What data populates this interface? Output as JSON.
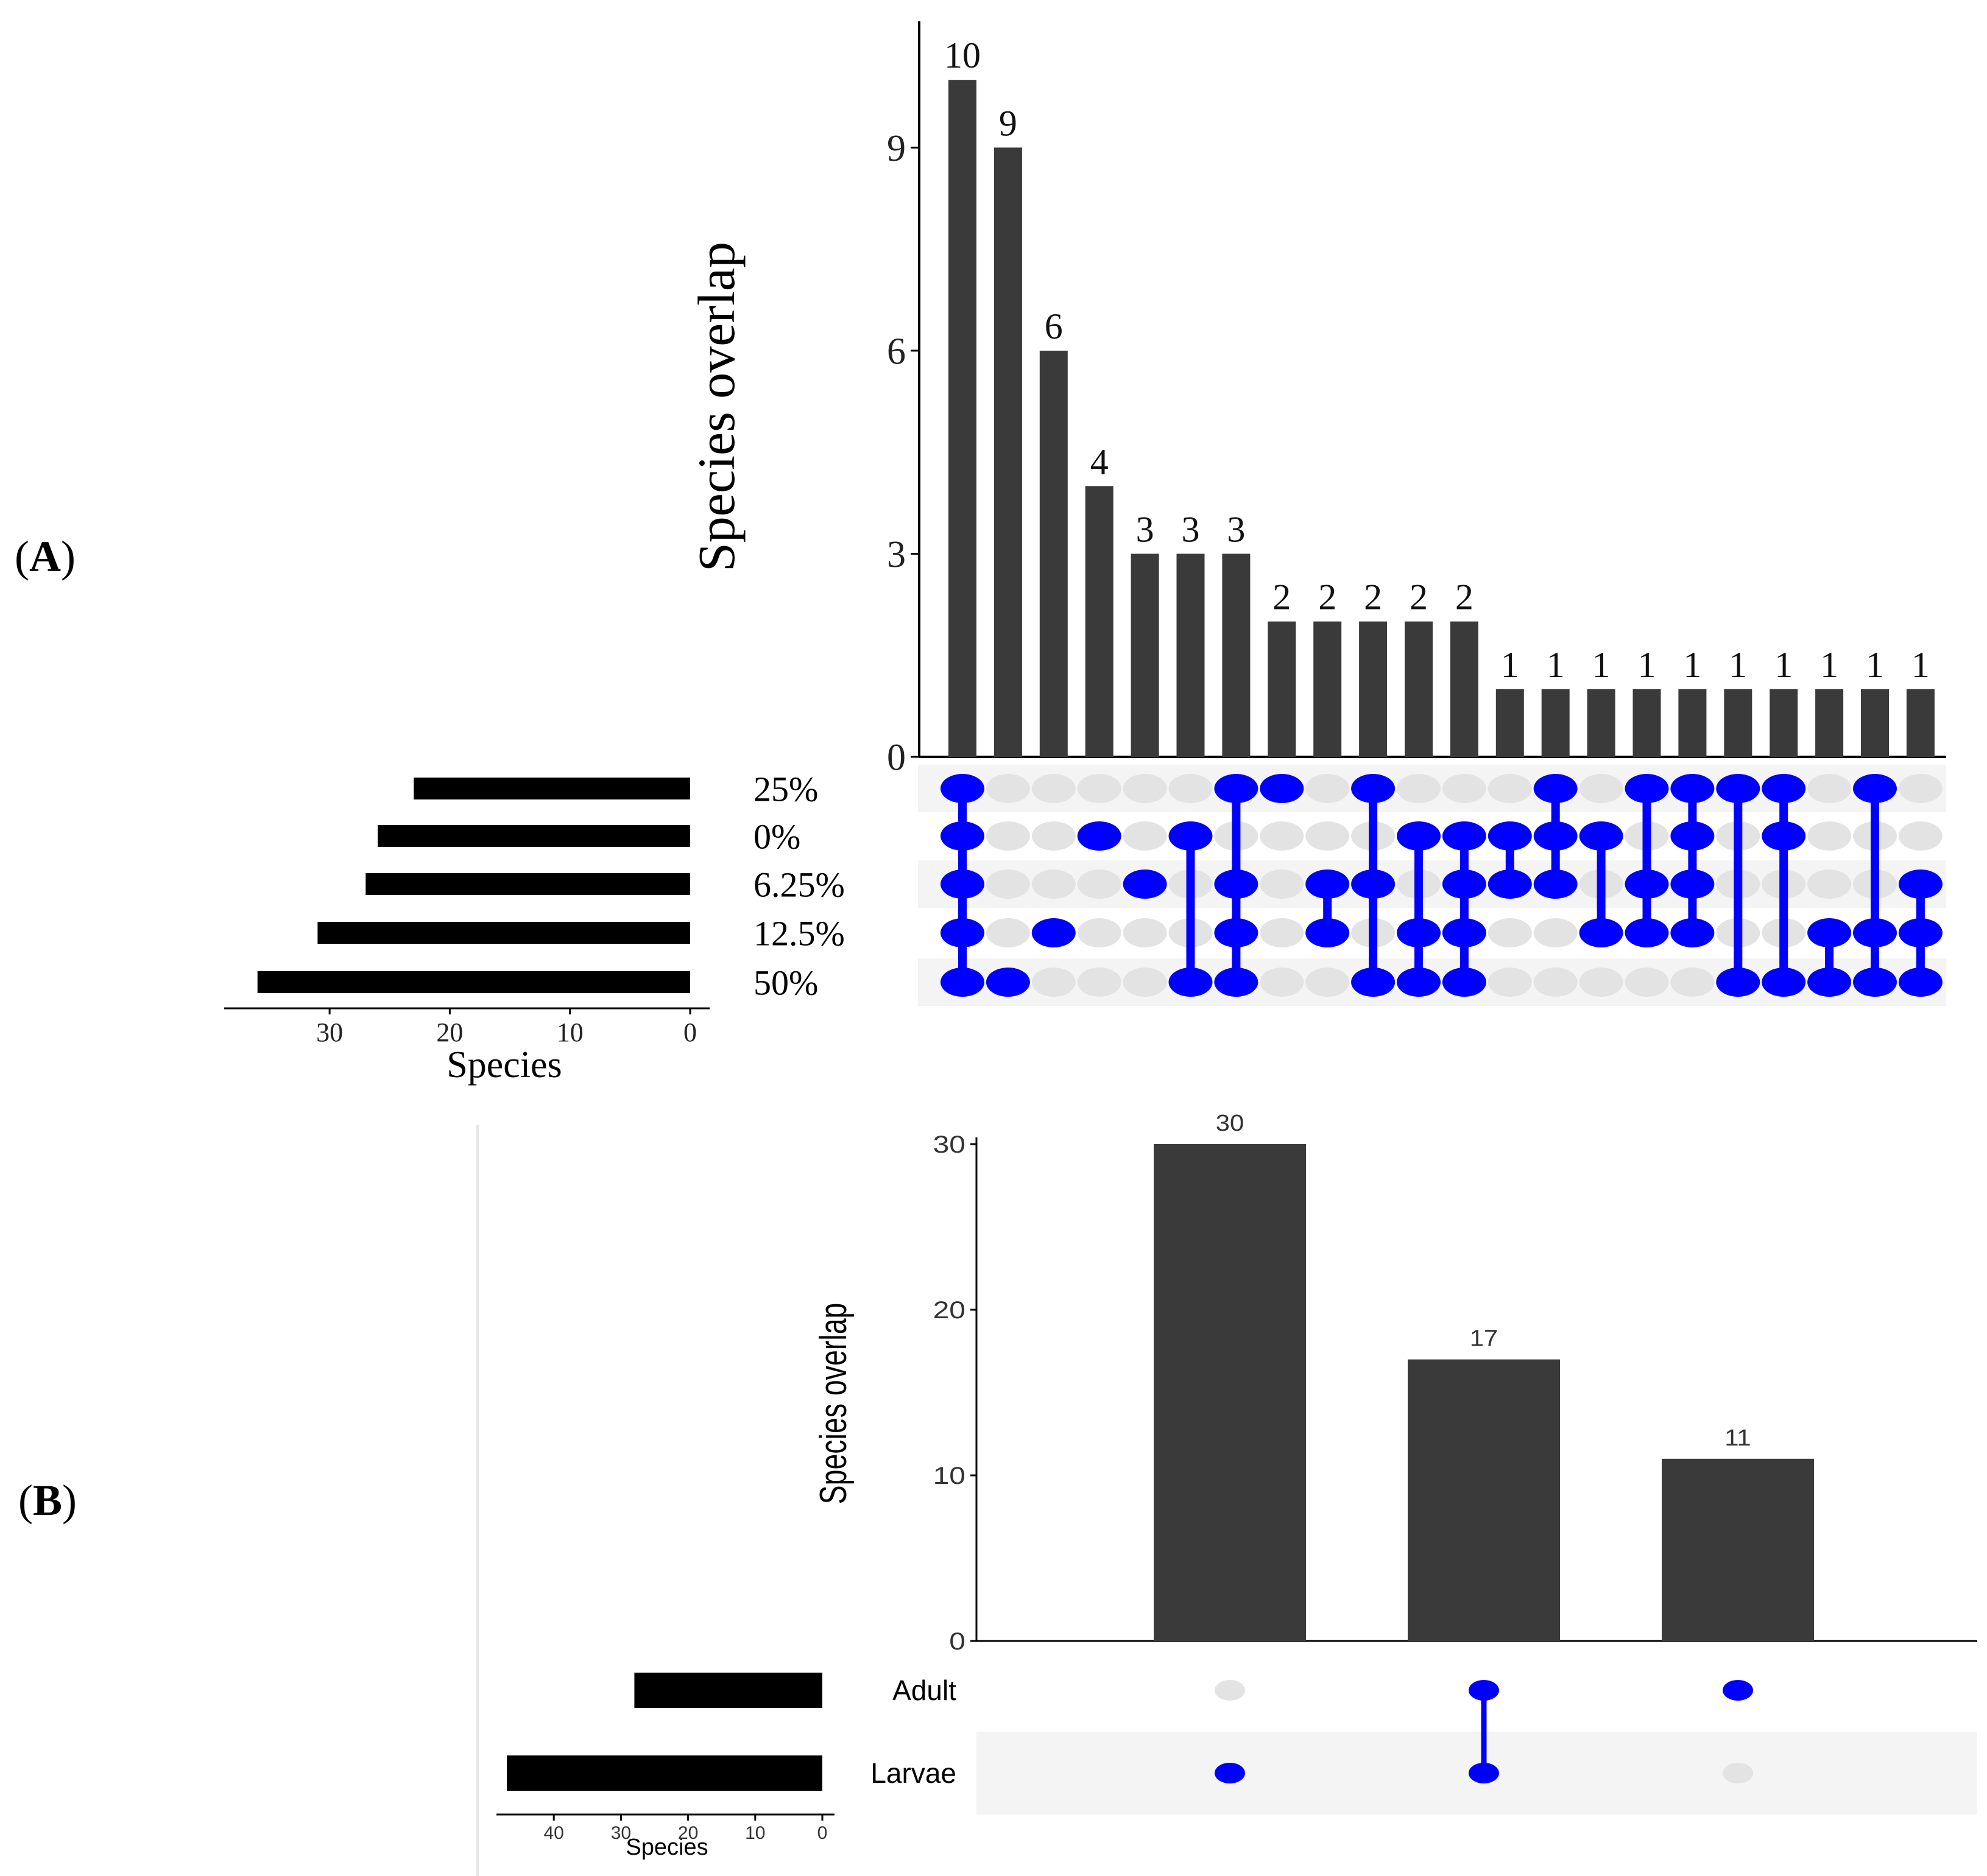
{
  "panels": {
    "a_label": {
      "open": "(",
      "letter": "A",
      "close": ")"
    },
    "b_label": {
      "open": "(",
      "letter": "B",
      "close": ")"
    }
  },
  "colors": {
    "bar": "#3a3a3a",
    "set_bar": "#000000",
    "dot_active": "#0000ff",
    "dot_inactive": "#e3e3e3",
    "stripe": "#f4f4f4"
  },
  "chart_data": [
    {
      "type": "bar",
      "subtype": "upset",
      "panel": "A",
      "ylabel": "Species overlap",
      "ylim": [
        0,
        11
      ],
      "yticks": [
        "0",
        "3",
        "6",
        "9"
      ],
      "values": [
        10,
        9,
        6,
        4,
        3,
        3,
        3,
        2,
        2,
        2,
        2,
        2,
        1,
        1,
        1,
        1,
        1,
        1,
        1,
        1,
        1,
        1
      ],
      "sets": [
        "25%",
        "0%",
        "6.25%",
        "12.5%",
        "50%"
      ],
      "intersections": [
        [
          "25%",
          "0%",
          "6.25%",
          "12.5%",
          "50%"
        ],
        [
          "50%"
        ],
        [
          "12.5%"
        ],
        [
          "0%"
        ],
        [
          "6.25%"
        ],
        [
          "0%",
          "50%"
        ],
        [
          "25%",
          "6.25%",
          "12.5%",
          "50%"
        ],
        [
          "25%"
        ],
        [
          "6.25%",
          "12.5%"
        ],
        [
          "25%",
          "6.25%",
          "50%"
        ],
        [
          "0%",
          "12.5%",
          "50%"
        ],
        [
          "0%",
          "6.25%",
          "12.5%",
          "50%"
        ],
        [
          "0%",
          "6.25%"
        ],
        [
          "25%",
          "0%",
          "6.25%"
        ],
        [
          "0%",
          "12.5%"
        ],
        [
          "25%",
          "6.25%",
          "12.5%"
        ],
        [
          "25%",
          "0%",
          "6.25%",
          "12.5%"
        ],
        [
          "25%",
          "50%"
        ],
        [
          "25%",
          "0%",
          "50%"
        ],
        [
          "12.5%",
          "50%"
        ],
        [
          "25%",
          "12.5%",
          "50%"
        ],
        [
          "6.25%",
          "12.5%",
          "50%"
        ]
      ],
      "set_sizes": [
        23,
        26,
        27,
        31,
        36
      ],
      "set_xlabel": "Species",
      "set_xlim": [
        0,
        37
      ],
      "set_xticks": [
        "30",
        "20",
        "10",
        "0"
      ],
      "grid": false
    },
    {
      "type": "bar",
      "subtype": "upset",
      "panel": "B",
      "ylabel": "Species overlap",
      "ylim": [
        0,
        35
      ],
      "yticks": [
        "0",
        "10",
        "20",
        "30"
      ],
      "values": [
        30,
        17,
        11
      ],
      "sets": [
        "Adult",
        "Larvae"
      ],
      "intersections": [
        [
          "Larvae"
        ],
        [
          "Adult",
          "Larvae"
        ],
        [
          "Adult"
        ]
      ],
      "set_sizes": [
        28,
        47
      ],
      "set_xlabel": "Species",
      "set_xlim": [
        0,
        49
      ],
      "set_xticks": [
        "40",
        "30",
        "20",
        "10",
        "0"
      ],
      "grid": false
    }
  ]
}
